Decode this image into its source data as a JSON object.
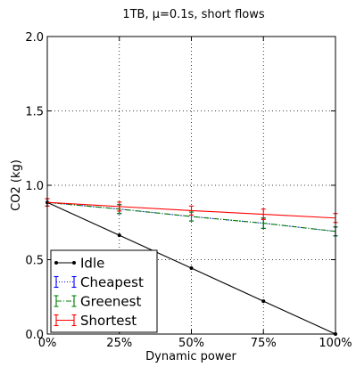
{
  "chart_data": {
    "type": "line",
    "title": "1TB, μ=0.1s, short flows",
    "xlabel": "Dynamic power",
    "ylabel": "CO2 (kg)",
    "categories": [
      "0%",
      "25%",
      "50%",
      "75%",
      "100%"
    ],
    "x": [
      0,
      25,
      50,
      75,
      100
    ],
    "xlim": [
      0,
      100
    ],
    "ylim": [
      0.0,
      2.0
    ],
    "yticks": [
      "0.0",
      "0.5",
      "1.0",
      "1.5",
      "2.0"
    ],
    "grid": true,
    "legend": "bottom-left",
    "series": [
      {
        "name": "Idle",
        "color": "#000000",
        "style": "solid",
        "marker": "dot",
        "values": [
          0.885,
          0.664,
          0.443,
          0.221,
          0.0
        ]
      },
      {
        "name": "Cheapest",
        "color": "#0000ff",
        "style": "dotted",
        "marker": "errorbar",
        "values": [
          0.885,
          0.84,
          0.79,
          0.745,
          0.69
        ],
        "err": [
          0.025,
          0.03,
          0.03,
          0.035,
          0.03
        ]
      },
      {
        "name": "Greenest",
        "color": "#008000",
        "style": "dashdot",
        "marker": "errorbar",
        "values": [
          0.885,
          0.84,
          0.79,
          0.745,
          0.69
        ],
        "err": [
          0.025,
          0.03,
          0.03,
          0.035,
          0.03
        ]
      },
      {
        "name": "Shortest",
        "color": "#ff0000",
        "style": "solid",
        "marker": "errorbar",
        "values": [
          0.885,
          0.857,
          0.83,
          0.805,
          0.78
        ],
        "err": [
          0.025,
          0.03,
          0.03,
          0.035,
          0.03
        ]
      }
    ]
  }
}
